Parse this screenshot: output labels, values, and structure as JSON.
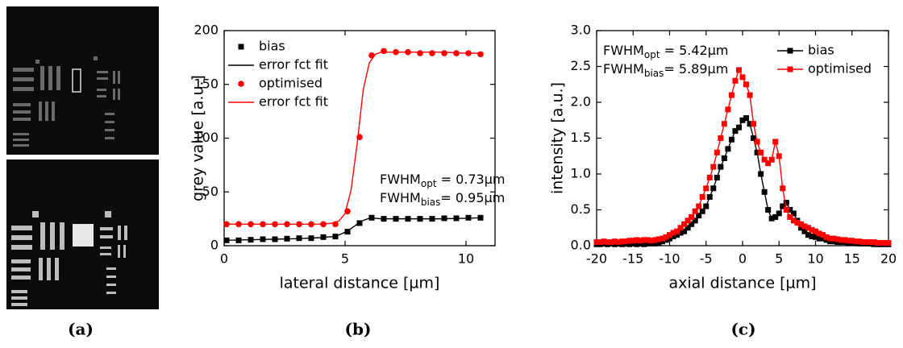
{
  "panel_labels": [
    "(a)",
    "(b)",
    "(c)"
  ],
  "chart_data": [
    {
      "type": "line",
      "x_label": "lateral distance [µm]",
      "y_label": "grey value [a.u.]",
      "xlim": [
        0,
        11.2
      ],
      "ylim": [
        0,
        200
      ],
      "xticks": [
        0,
        5,
        10
      ],
      "yticks": [
        0,
        50,
        100,
        150,
        200
      ],
      "legend": "top-left",
      "series": [
        {
          "name": "bias",
          "color": "#000000",
          "marker": "square",
          "line": false,
          "x": [
            0.1,
            0.6,
            1.1,
            1.6,
            2.1,
            2.6,
            3.1,
            3.6,
            4.1,
            4.6,
            5.1,
            5.6,
            6.1,
            6.6,
            7.1,
            7.6,
            8.1,
            8.6,
            9.1,
            9.6,
            10.1,
            10.6
          ],
          "values": [
            5,
            5,
            5.5,
            6,
            6,
            6.5,
            7,
            7,
            8,
            8.5,
            13,
            21,
            26,
            25,
            25,
            25,
            25,
            25,
            25.5,
            25.5,
            26,
            26
          ]
        },
        {
          "name": "error fct fit",
          "color": "#000000",
          "marker": "none",
          "line": true,
          "x": [
            0,
            1,
            2,
            3,
            4,
            4.5,
            4.75,
            5,
            5.25,
            5.5,
            5.75,
            6,
            6.25,
            6.5,
            7,
            8,
            9,
            10,
            10.7
          ],
          "values": [
            5,
            5.5,
            6,
            6.5,
            7.5,
            8.5,
            10,
            12.5,
            16,
            20,
            23.5,
            25.5,
            25.5,
            25,
            25,
            25,
            25,
            25.5,
            26
          ]
        },
        {
          "name": "optimised",
          "color": "#ff0000",
          "marker": "circle",
          "line": false,
          "x": [
            0.1,
            0.6,
            1.1,
            1.6,
            2.1,
            2.6,
            3.1,
            3.6,
            4.1,
            4.6,
            5.1,
            5.6,
            6.1,
            6.6,
            7.1,
            7.6,
            8.1,
            8.6,
            9.1,
            9.6,
            10.1,
            10.6
          ],
          "values": [
            20,
            20,
            20,
            20,
            20,
            20,
            20,
            20,
            20,
            20,
            32,
            101,
            177,
            181,
            180,
            180,
            179,
            179,
            179,
            179,
            179,
            178
          ]
        },
        {
          "name": "error fct fit",
          "color": "#ff0000",
          "marker": "none",
          "line": true,
          "x": [
            0,
            1,
            2,
            3,
            4,
            4.5,
            4.75,
            5,
            5.25,
            5.5,
            5.75,
            6,
            6.25,
            6.5,
            7,
            8,
            9,
            10,
            10.7
          ],
          "values": [
            20,
            20,
            20,
            20,
            20,
            21,
            23,
            30,
            52,
            95,
            145,
            170,
            178,
            180,
            180,
            180,
            180,
            179,
            179
          ]
        }
      ],
      "annotations": [
        {
          "text": "FWHM",
          "subscript": "opt",
          "suffix": " = 0.73µm"
        },
        {
          "text": "FWHM",
          "subscript": "bias",
          "suffix": "= 0.95µm"
        }
      ]
    },
    {
      "type": "line",
      "x_label": "axial distance [µm]",
      "y_label": "intensity [a.u.]",
      "xlim": [
        -20,
        20
      ],
      "ylim": [
        0,
        3
      ],
      "xticks": [
        -20,
        -15,
        -10,
        -5,
        0,
        5,
        10,
        15,
        20
      ],
      "yticks": [
        {
          "value": 0,
          "label": "0.0"
        },
        0.5,
        {
          "value": 1,
          "label": "1.0"
        },
        1.5,
        {
          "value": 2,
          "label": "2.0"
        },
        2.5,
        {
          "value": 3,
          "label": "3.0"
        }
      ],
      "legend": "top-right",
      "series": [
        {
          "name": "bias",
          "color": "#000000",
          "marker": "square",
          "line": true,
          "x": [
            -20,
            -19.5,
            -19,
            -18.5,
            -18,
            -17.5,
            -17,
            -16.5,
            -16,
            -15.5,
            -15,
            -14.5,
            -14,
            -13.5,
            -13,
            -12.5,
            -12,
            -11.5,
            -11,
            -10.5,
            -10,
            -9.5,
            -9,
            -8.5,
            -8,
            -7.5,
            -7,
            -6.5,
            -6,
            -5.5,
            -5,
            -4.5,
            -4,
            -3.5,
            -3,
            -2.5,
            -2,
            -1.5,
            -1,
            -0.5,
            0,
            0.5,
            1,
            1.5,
            2,
            2.5,
            3,
            3.5,
            4,
            4.5,
            5,
            5.5,
            6,
            6.5,
            7,
            7.5,
            8,
            8.5,
            9,
            9.5,
            10,
            10.5,
            11,
            11.5,
            12,
            12.5,
            13,
            13.5,
            14,
            14.5,
            15,
            15.5,
            16,
            16.5,
            17,
            17.5,
            18,
            18.5,
            19,
            19.5,
            20
          ],
          "values": [
            0.02,
            0.02,
            0.03,
            0.02,
            0.03,
            0.02,
            0.03,
            0.02,
            0.03,
            0.02,
            0.03,
            0.02,
            0.03,
            0.02,
            0.03,
            0.03,
            0.03,
            0.04,
            0.06,
            0.08,
            0.1,
            0.13,
            0.15,
            0.18,
            0.2,
            0.25,
            0.3,
            0.35,
            0.42,
            0.48,
            0.55,
            0.68,
            0.8,
            0.95,
            1.1,
            1.22,
            1.35,
            1.48,
            1.6,
            1.65,
            1.75,
            1.78,
            1.7,
            1.5,
            1.3,
            1.0,
            0.75,
            0.5,
            0.38,
            0.4,
            0.45,
            0.55,
            0.6,
            0.5,
            0.45,
            0.35,
            0.25,
            0.2,
            0.15,
            0.13,
            0.12,
            0.1,
            0.1,
            0.08,
            0.06,
            0.06,
            0.05,
            0.05,
            0.05,
            0.04,
            0.04,
            0.04,
            0.03,
            0.03,
            0.03,
            0.03,
            0.02,
            0.02,
            0.02,
            0.02,
            0.02
          ]
        },
        {
          "name": "optimised",
          "color": "#ff0000",
          "marker": "square",
          "line": true,
          "x": [
            -20,
            -19.5,
            -19,
            -18.5,
            -18,
            -17.5,
            -17,
            -16.5,
            -16,
            -15.5,
            -15,
            -14.5,
            -14,
            -13.5,
            -13,
            -12.5,
            -12,
            -11.5,
            -11,
            -10.5,
            -10,
            -9.5,
            -9,
            -8.5,
            -8,
            -7.5,
            -7,
            -6.5,
            -6,
            -5.5,
            -5,
            -4.5,
            -4,
            -3.5,
            -3,
            -2.5,
            -2,
            -1.5,
            -1,
            -0.5,
            0,
            0.5,
            1,
            1.5,
            2,
            2.5,
            3,
            3.5,
            4,
            4.5,
            5,
            5.5,
            6,
            6.5,
            7,
            7.5,
            8,
            8.5,
            9,
            9.5,
            10,
            10.5,
            11,
            11.5,
            12,
            12.5,
            13,
            13.5,
            14,
            14.5,
            15,
            15.5,
            16,
            16.5,
            17,
            17.5,
            18,
            18.5,
            19,
            19.5,
            20
          ],
          "values": [
            0.05,
            0.05,
            0.06,
            0.05,
            0.05,
            0.06,
            0.05,
            0.06,
            0.06,
            0.07,
            0.07,
            0.08,
            0.07,
            0.08,
            0.08,
            0.07,
            0.08,
            0.09,
            0.1,
            0.12,
            0.15,
            0.18,
            0.2,
            0.25,
            0.3,
            0.35,
            0.4,
            0.48,
            0.55,
            0.68,
            0.8,
            0.95,
            1.1,
            1.3,
            1.5,
            1.7,
            1.9,
            2.1,
            2.3,
            2.45,
            2.35,
            2.25,
            2.1,
            1.7,
            1.45,
            1.3,
            1.2,
            1.15,
            1.2,
            1.45,
            1.25,
            0.8,
            0.5,
            0.4,
            0.35,
            0.32,
            0.3,
            0.27,
            0.25,
            0.22,
            0.2,
            0.17,
            0.15,
            0.12,
            0.1,
            0.1,
            0.09,
            0.08,
            0.08,
            0.07,
            0.07,
            0.06,
            0.06,
            0.05,
            0.05,
            0.05,
            0.05,
            0.04,
            0.04,
            0.04,
            0.04
          ]
        }
      ],
      "annotations": [
        {
          "text": "FWHM",
          "subscript": "opt",
          "suffix": " = 5.42µm"
        },
        {
          "text": "FWHM",
          "subscript": "bias",
          "suffix": "= 5.89µm"
        }
      ]
    }
  ]
}
